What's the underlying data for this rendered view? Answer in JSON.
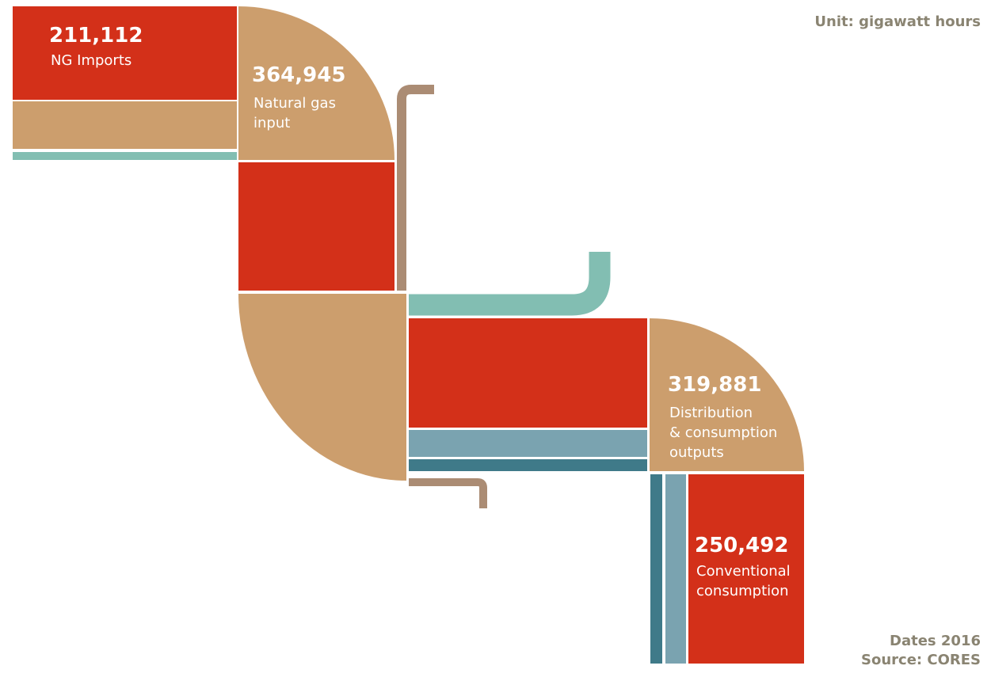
{
  "unit": "Unit: gigawatt hours",
  "nodes": [
    {
      "value": "211,112",
      "label_lines": [
        "NG Imports"
      ]
    },
    {
      "value": "364,945",
      "label_lines": [
        "Natural gas",
        "input"
      ]
    },
    {
      "value": "319,881",
      "label_lines": [
        "Distribution",
        "& consumption",
        "outputs"
      ]
    },
    {
      "value": "250,492",
      "label_lines": [
        "Conventional",
        "consumption"
      ]
    }
  ],
  "footer": {
    "dates": "Dates 2016",
    "source": "Source: CORES"
  }
}
